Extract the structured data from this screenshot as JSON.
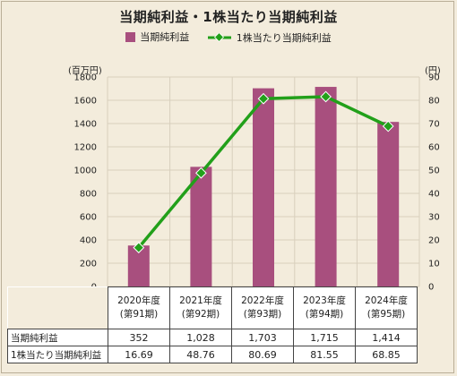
{
  "title": "当期純利益・1株当たり当期純利益",
  "legend": {
    "bar_label": "当期純利益",
    "line_label": "1株当たり当期純利益"
  },
  "axes": {
    "left_unit": "(百万円)",
    "right_unit": "(円)"
  },
  "colors": {
    "bar": "#a84f7e",
    "line": "#22a01a",
    "marker": "#22a01a",
    "grid": "#d8cfbd"
  },
  "table": {
    "headers": [
      {
        "year": "2020年度",
        "term": "(第91期)"
      },
      {
        "year": "2021年度",
        "term": "(第92期)"
      },
      {
        "year": "2022年度",
        "term": "(第93期)"
      },
      {
        "year": "2023年度",
        "term": "(第94期)"
      },
      {
        "year": "2024年度",
        "term": "(第95期)"
      }
    ],
    "rows": [
      {
        "label": "当期純利益",
        "values": [
          "352",
          "1,028",
          "1,703",
          "1,715",
          "1,414"
        ]
      },
      {
        "label": "1株当たり当期純利益",
        "values": [
          "16.69",
          "48.76",
          "80.69",
          "81.55",
          "68.85"
        ]
      }
    ]
  },
  "chart_data": {
    "type": "bar",
    "title": "当期純利益・1株当たり当期純利益",
    "categories": [
      "2020年度",
      "2021年度",
      "2022年度",
      "2023年度",
      "2024年度"
    ],
    "series": [
      {
        "name": "当期純利益",
        "type": "bar",
        "axis": "left",
        "values": [
          352,
          1028,
          1703,
          1715,
          1414
        ]
      },
      {
        "name": "1株当たり当期純利益",
        "type": "line",
        "axis": "right",
        "values": [
          16.69,
          48.76,
          80.69,
          81.55,
          68.85
        ]
      }
    ],
    "y_left": {
      "label": "(百万円)",
      "min": 0,
      "max": 1800,
      "step": 200
    },
    "y_right": {
      "label": "(円)",
      "min": 0,
      "max": 90,
      "step": 10
    },
    "grid": true,
    "legend_position": "top"
  }
}
